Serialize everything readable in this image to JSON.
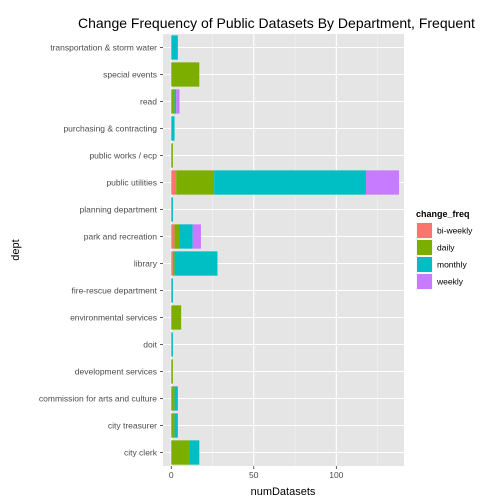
{
  "chart_data": {
    "type": "bar",
    "orientation": "horizontal",
    "stacked": true,
    "title": "Change Frequency of Public Datasets By Department, Frequent",
    "xlabel": "numDatasets",
    "ylabel": "dept",
    "xlim": [
      -5,
      141
    ],
    "x_ticks": [
      0,
      50,
      100
    ],
    "grid": true,
    "legend_position": "right",
    "legend_title": "change_freq",
    "categories": [
      "city clerk",
      "city treasurer",
      "commission for arts and culture",
      "development services",
      "doit",
      "environmental services",
      "fire-rescue department",
      "library",
      "park and recreation",
      "planning department",
      "public utilities",
      "public works / ecp",
      "purchasing & contracting",
      "read",
      "special events",
      "transportation & storm water"
    ],
    "series": [
      {
        "name": "bi-weekly",
        "color": "#F8766D",
        "values": [
          0,
          0,
          0,
          0,
          0,
          0,
          0,
          1,
          2,
          0,
          3,
          0,
          0,
          0,
          0,
          0
        ]
      },
      {
        "name": "daily",
        "color": "#7CAE00",
        "values": [
          11,
          2,
          2,
          1,
          0,
          6,
          0,
          1,
          3,
          0,
          23,
          1,
          0,
          2,
          17,
          0
        ]
      },
      {
        "name": "monthly",
        "color": "#00BFC4",
        "values": [
          6,
          2,
          2,
          0,
          1,
          0,
          1,
          26,
          8,
          1,
          92,
          0,
          2,
          1,
          0,
          4
        ]
      },
      {
        "name": "weekly",
        "color": "#C77CFF",
        "values": [
          0,
          0,
          0,
          0,
          0,
          0,
          0,
          0,
          5,
          0,
          20,
          0,
          0,
          2,
          0,
          0
        ]
      }
    ]
  }
}
